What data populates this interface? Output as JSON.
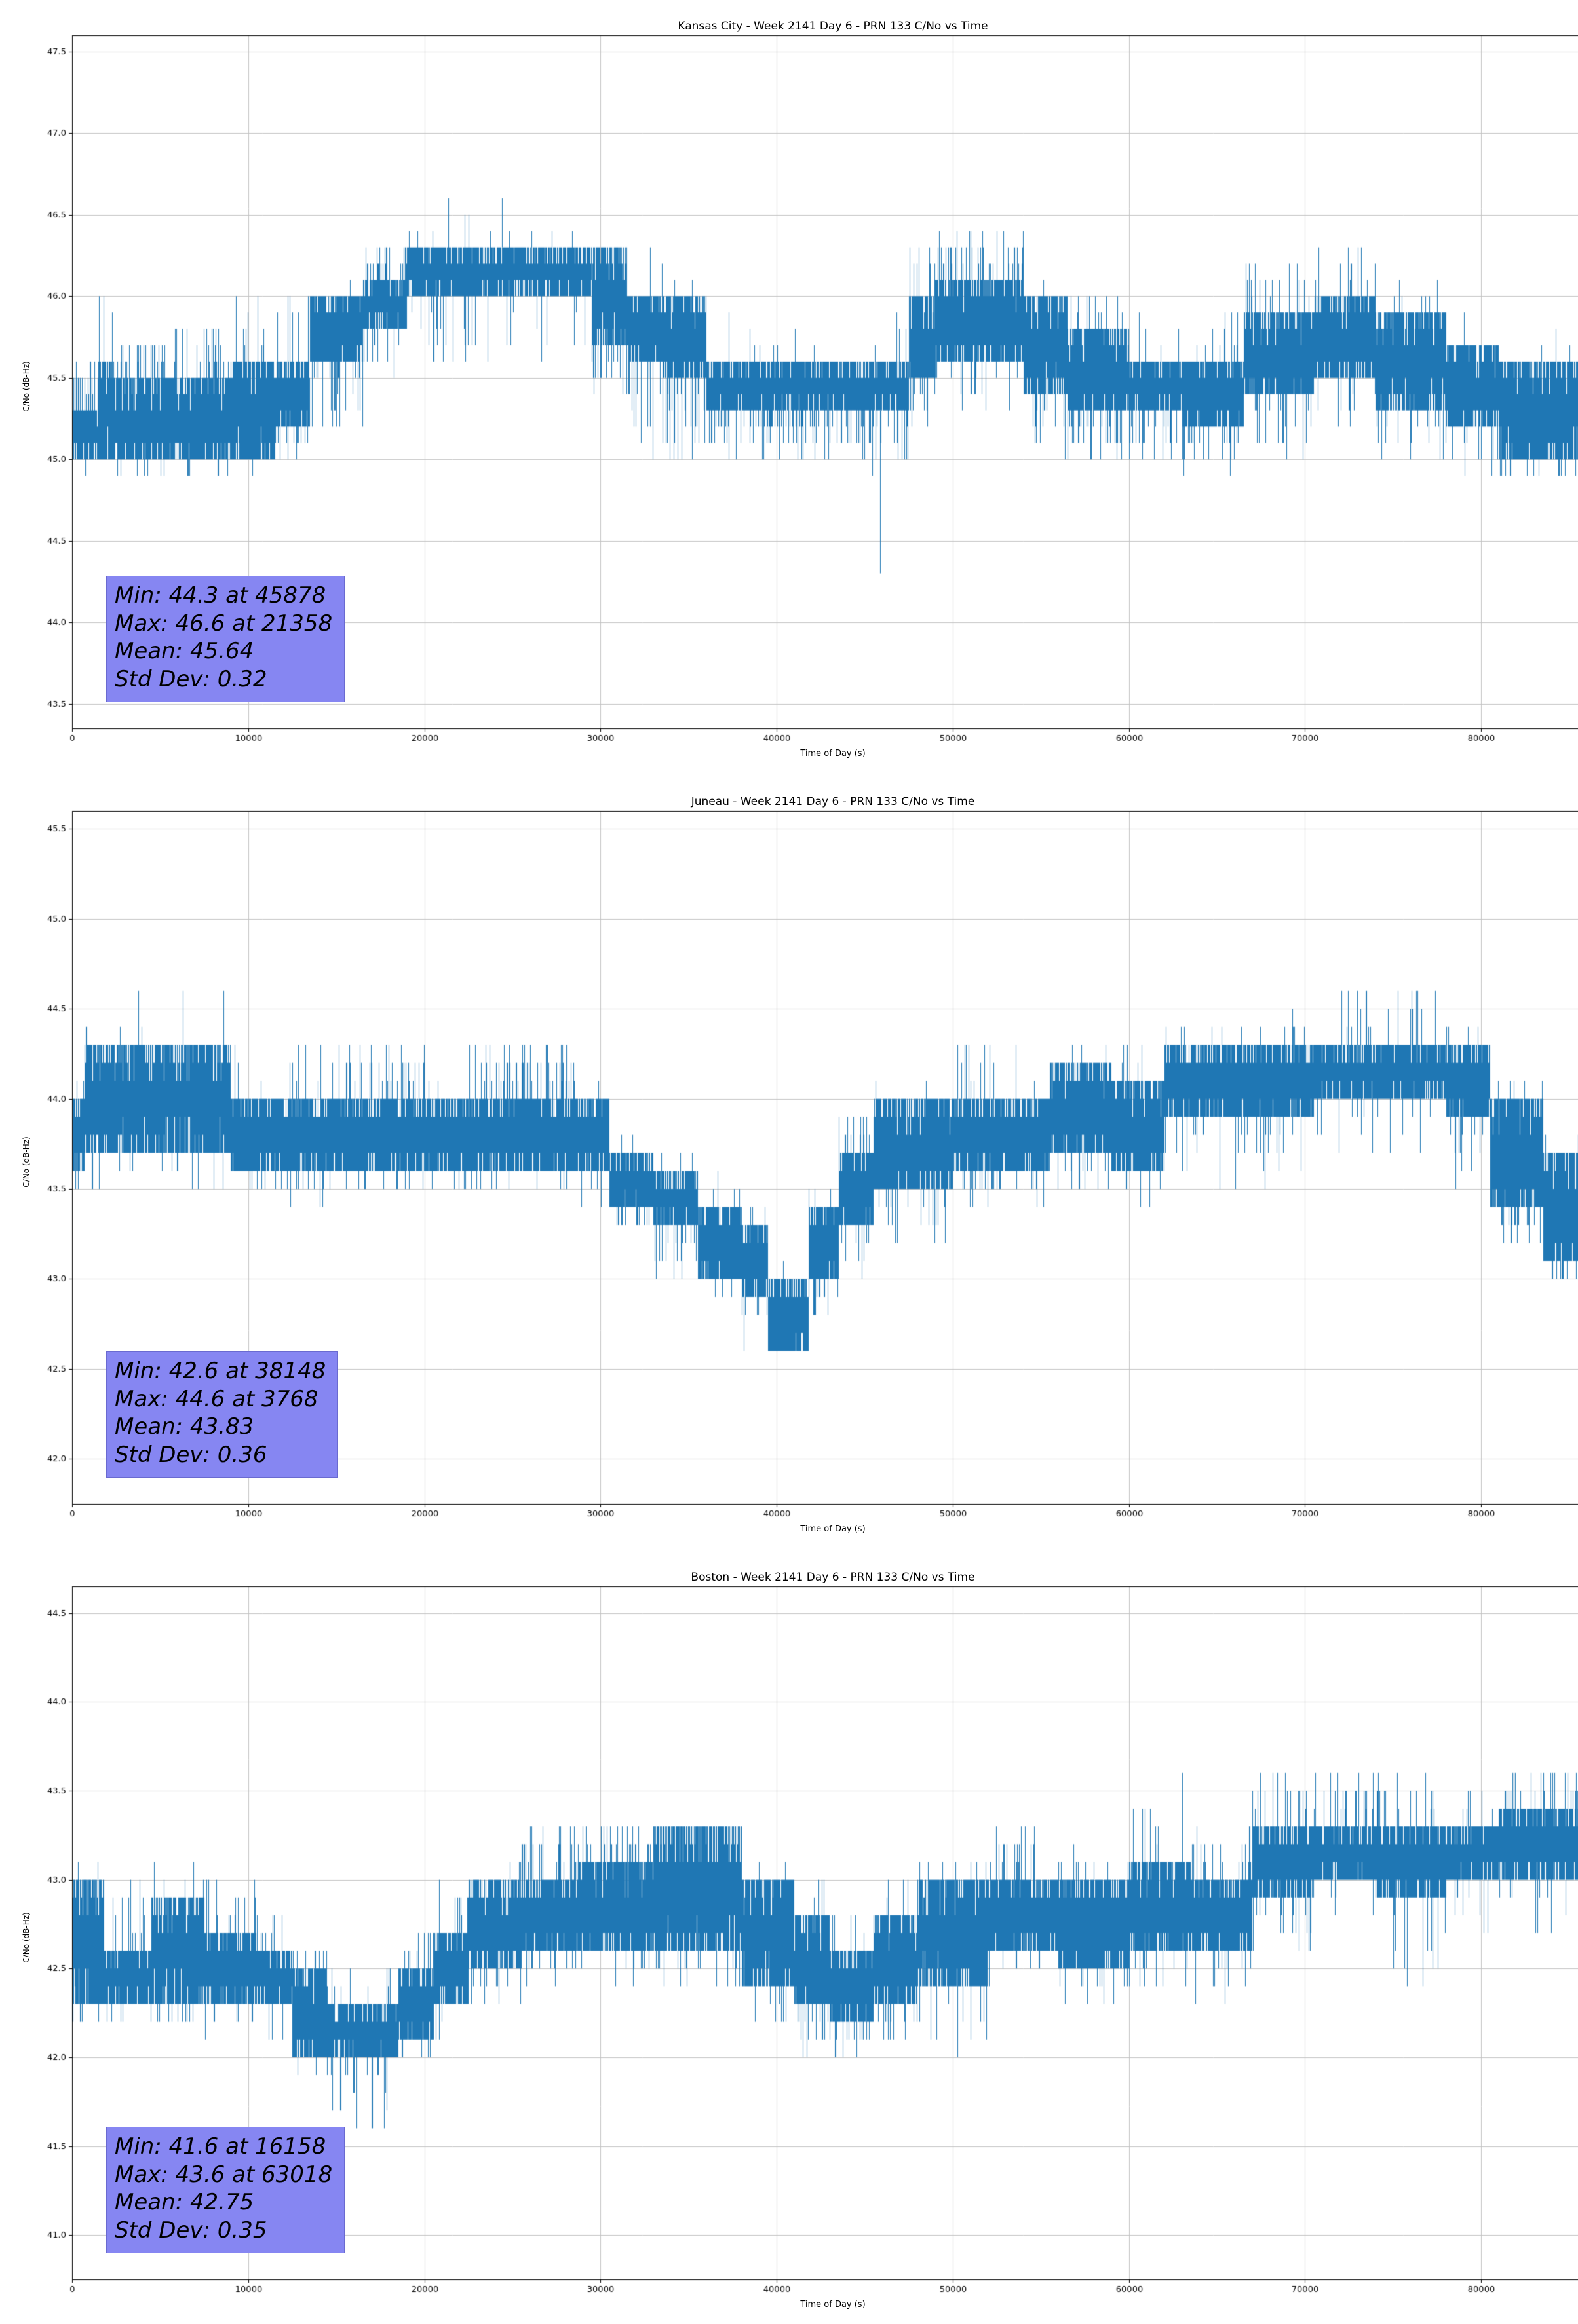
{
  "page": {
    "background": "#ffffff"
  },
  "chart_data": [
    {
      "type": "line",
      "station": "Kansas City",
      "title": "Kansas City - Week 2141 Day 6 - PRN 133 C/No vs Time",
      "xlabel": "Time of Day (s)",
      "ylabel": "C/No (dB-Hz)",
      "xlim": [
        0,
        86400
      ],
      "ylim": [
        43.35,
        47.6
      ],
      "xticks": [
        0,
        10000,
        20000,
        30000,
        40000,
        50000,
        60000,
        70000,
        80000
      ],
      "yticks": [
        43.5,
        44.0,
        44.5,
        45.0,
        45.5,
        46.0,
        46.5,
        47.0,
        47.5
      ],
      "grid": true,
      "grid_color": "#c3c3c3",
      "line_color": "#1f77b4",
      "annotation_bg": "#8686f2",
      "stats": {
        "min": 44.3,
        "min_time": 45878,
        "max": 46.6,
        "max_time": 21358,
        "mean": 45.64,
        "std_dev": 0.32
      },
      "stats_lines": [
        "Min: 44.3 at 45878",
        "Max: 46.6 at 21358",
        "Mean: 45.64",
        "Std Dev: 0.32"
      ],
      "seed": 1337,
      "segments": [
        [
          0,
          1500,
          45.0,
          45.3,
          44.9,
          45.6,
          0.1,
          0.5
        ],
        [
          1500,
          2300,
          45.0,
          45.6,
          44.9,
          46.0,
          0.05,
          0.08
        ],
        [
          2300,
          5500,
          45.0,
          45.5,
          44.9,
          45.7,
          0.1,
          0.2
        ],
        [
          5500,
          9000,
          45.0,
          45.5,
          44.9,
          45.8,
          0.08,
          0.15
        ],
        [
          9000,
          11500,
          45.0,
          45.6,
          44.9,
          46.0,
          0.05,
          0.12
        ],
        [
          11500,
          13500,
          45.2,
          45.6,
          45.0,
          46.0,
          0.15,
          0.1
        ],
        [
          13500,
          16500,
          45.6,
          46.0,
          45.2,
          46.1,
          0.25,
          0.05
        ],
        [
          16500,
          19000,
          45.8,
          46.1,
          45.5,
          46.3,
          0.2,
          0.3
        ],
        [
          19000,
          22500,
          46.0,
          46.3,
          45.6,
          46.5,
          0.1,
          0.05
        ],
        [
          22500,
          26000,
          46.0,
          46.3,
          45.6,
          46.6,
          0.07,
          0.03
        ],
        [
          26000,
          29500,
          46.0,
          46.3,
          45.6,
          46.4,
          0.12,
          0.04
        ],
        [
          29500,
          31500,
          45.7,
          46.3,
          45.3,
          46.3,
          0.3,
          0.02
        ],
        [
          31500,
          33500,
          45.6,
          46.0,
          45.0,
          46.3,
          0.2,
          0.05
        ],
        [
          33500,
          36000,
          45.5,
          46.0,
          45.0,
          46.1,
          0.25,
          0.05
        ],
        [
          36000,
          38500,
          45.3,
          45.6,
          45.0,
          46.0,
          0.3,
          0.05
        ],
        [
          38500,
          45000,
          45.3,
          45.6,
          45.0,
          45.8,
          0.4,
          0.04
        ],
        [
          45000,
          47500,
          45.3,
          45.6,
          44.9,
          45.9,
          0.3,
          0.06
        ],
        [
          47500,
          49000,
          45.5,
          46.0,
          45.2,
          46.3,
          0.2,
          0.2
        ],
        [
          49000,
          54000,
          45.6,
          46.1,
          45.3,
          46.4,
          0.15,
          0.25
        ],
        [
          54000,
          56500,
          45.4,
          46.0,
          45.0,
          46.1,
          0.2,
          0.05
        ],
        [
          56500,
          60000,
          45.3,
          45.8,
          45.0,
          46.0,
          0.2,
          0.1
        ],
        [
          60000,
          63000,
          45.3,
          45.6,
          45.0,
          46.0,
          0.3,
          0.06
        ],
        [
          63000,
          66500,
          45.2,
          45.6,
          44.9,
          45.9,
          0.3,
          0.1
        ],
        [
          66500,
          70500,
          45.4,
          45.9,
          45.0,
          46.2,
          0.15,
          0.15
        ],
        [
          70500,
          74000,
          45.5,
          46.0,
          45.2,
          46.3,
          0.12,
          0.1
        ],
        [
          74000,
          78000,
          45.3,
          45.9,
          45.0,
          46.1,
          0.15,
          0.1
        ],
        [
          78000,
          81000,
          45.2,
          45.7,
          44.9,
          46.0,
          0.2,
          0.06
        ],
        [
          81000,
          86400,
          45.0,
          45.6,
          44.9,
          45.8,
          0.2,
          0.05
        ]
      ],
      "spikes": [
        [
          1800,
          46.0
        ],
        [
          21358,
          46.6
        ],
        [
          24400,
          46.6
        ],
        [
          45878,
          44.3
        ]
      ]
    },
    {
      "type": "line",
      "station": "Juneau",
      "title": "Juneau - Week 2141 Day 6 - PRN 133 C/No vs Time",
      "xlabel": "Time of Day (s)",
      "ylabel": "C/No (dB-Hz)",
      "xlim": [
        0,
        86400
      ],
      "ylim": [
        41.75,
        45.6
      ],
      "xticks": [
        0,
        10000,
        20000,
        30000,
        40000,
        50000,
        60000,
        70000,
        80000
      ],
      "yticks": [
        42.0,
        42.5,
        43.0,
        43.5,
        44.0,
        44.5,
        45.0,
        45.5
      ],
      "grid": true,
      "grid_color": "#c3c3c3",
      "line_color": "#1f77b4",
      "annotation_bg": "#8686f2",
      "stats": {
        "min": 42.6,
        "min_time": 38148,
        "max": 44.6,
        "max_time": 3768,
        "mean": 43.83,
        "std_dev": 0.36
      },
      "stats_lines": [
        "Min: 42.6 at 38148",
        "Max: 44.6 at 3768",
        "Mean: 43.83",
        "Std Dev: 0.36"
      ],
      "seed": 4242,
      "segments": [
        [
          0,
          700,
          43.6,
          44.0,
          43.5,
          44.1,
          0.2,
          0.1
        ],
        [
          700,
          9000,
          43.7,
          44.3,
          43.5,
          44.4,
          0.15,
          0.03
        ],
        [
          9000,
          15500,
          43.6,
          44.0,
          43.4,
          44.3,
          0.15,
          0.06
        ],
        [
          15500,
          20000,
          43.6,
          44.0,
          43.5,
          44.3,
          0.1,
          0.25
        ],
        [
          20000,
          22500,
          43.6,
          44.0,
          43.5,
          44.1,
          0.15,
          0.05
        ],
        [
          22500,
          28500,
          43.6,
          44.0,
          43.5,
          44.3,
          0.1,
          0.25
        ],
        [
          28500,
          30500,
          43.6,
          44.0,
          43.4,
          44.1,
          0.15,
          0.05
        ],
        [
          30500,
          33000,
          43.4,
          43.7,
          43.3,
          43.8,
          0.3,
          0.1
        ],
        [
          33000,
          35500,
          43.3,
          43.6,
          43.0,
          43.7,
          0.25,
          0.1
        ],
        [
          35500,
          38000,
          43.0,
          43.4,
          42.9,
          43.6,
          0.2,
          0.1
        ],
        [
          38000,
          39500,
          42.9,
          43.3,
          42.6,
          43.4,
          0.25,
          0.05
        ],
        [
          39500,
          41800,
          42.6,
          43.0,
          42.6,
          43.1,
          0.3,
          0.05
        ],
        [
          41800,
          43500,
          43.0,
          43.4,
          42.8,
          43.5,
          0.2,
          0.1
        ],
        [
          43500,
          45500,
          43.3,
          43.7,
          43.0,
          43.9,
          0.2,
          0.15
        ],
        [
          45500,
          50000,
          43.5,
          44.0,
          43.2,
          44.1,
          0.2,
          0.05
        ],
        [
          50000,
          55500,
          43.6,
          44.0,
          43.4,
          44.3,
          0.15,
          0.1
        ],
        [
          55500,
          59000,
          43.7,
          44.2,
          43.5,
          44.3,
          0.12,
          0.05
        ],
        [
          59000,
          62000,
          43.6,
          44.1,
          43.4,
          44.3,
          0.15,
          0.1
        ],
        [
          62000,
          67000,
          43.9,
          44.3,
          43.5,
          44.4,
          0.15,
          0.03
        ],
        [
          67000,
          70500,
          43.9,
          44.3,
          43.5,
          44.5,
          0.12,
          0.06
        ],
        [
          70500,
          78000,
          44.0,
          44.3,
          43.7,
          44.6,
          0.1,
          0.08
        ],
        [
          78000,
          80500,
          43.9,
          44.3,
          43.5,
          44.4,
          0.15,
          0.05
        ],
        [
          80500,
          83500,
          43.4,
          44.0,
          43.2,
          44.1,
          0.25,
          0.05
        ],
        [
          83500,
          86400,
          43.1,
          43.7,
          43.0,
          43.8,
          0.3,
          0.05
        ]
      ],
      "spikes": [
        [
          3768,
          44.6
        ],
        [
          6300,
          44.6
        ],
        [
          8600,
          44.6
        ],
        [
          38148,
          42.6
        ]
      ]
    },
    {
      "type": "line",
      "station": "Boston",
      "title": "Boston - Week 2141 Day 6 - PRN 133 C/No vs Time",
      "xlabel": "Time of Day (s)",
      "ylabel": "C/No (dB-Hz)",
      "xlim": [
        0,
        86400
      ],
      "ylim": [
        40.75,
        44.65
      ],
      "xticks": [
        0,
        10000,
        20000,
        30000,
        40000,
        50000,
        60000,
        70000,
        80000
      ],
      "yticks": [
        41.0,
        41.5,
        42.0,
        42.5,
        43.0,
        43.5,
        44.0,
        44.5
      ],
      "grid": true,
      "grid_color": "#c3c3c3",
      "line_color": "#1f77b4",
      "annotation_bg": "#8686f2",
      "stats": {
        "min": 41.6,
        "min_time": 16158,
        "max": 43.6,
        "max_time": 63018,
        "mean": 42.75,
        "std_dev": 0.35
      },
      "stats_lines": [
        "Min: 41.6 at 16158",
        "Max: 43.6 at 63018",
        "Mean: 42.75",
        "Std Dev: 0.35"
      ],
      "seed": 9001,
      "segments": [
        [
          0,
          1800,
          42.3,
          43.0,
          42.2,
          43.1,
          0.15,
          0.05
        ],
        [
          1800,
          4500,
          42.3,
          42.6,
          42.2,
          43.0,
          0.15,
          0.2
        ],
        [
          4500,
          7500,
          42.3,
          42.9,
          42.2,
          43.1,
          0.15,
          0.08
        ],
        [
          7500,
          10500,
          42.3,
          42.7,
          42.1,
          43.0,
          0.15,
          0.12
        ],
        [
          10500,
          12500,
          42.3,
          42.6,
          42.0,
          42.8,
          0.15,
          0.1
        ],
        [
          12500,
          14500,
          42.0,
          42.5,
          41.9,
          42.6,
          0.2,
          0.1
        ],
        [
          14500,
          18500,
          42.0,
          42.3,
          41.6,
          42.5,
          0.15,
          0.1
        ],
        [
          18500,
          20500,
          42.1,
          42.5,
          42.0,
          42.7,
          0.2,
          0.15
        ],
        [
          20500,
          22500,
          42.3,
          42.7,
          42.1,
          43.0,
          0.15,
          0.15
        ],
        [
          22500,
          25500,
          42.5,
          43.0,
          42.3,
          43.1,
          0.15,
          0.05
        ],
        [
          25500,
          28500,
          42.6,
          43.0,
          42.4,
          43.3,
          0.1,
          0.2
        ],
        [
          28500,
          33000,
          42.6,
          43.1,
          42.4,
          43.3,
          0.1,
          0.25
        ],
        [
          33000,
          38000,
          42.6,
          43.3,
          42.4,
          43.3,
          0.12,
          0.02
        ],
        [
          38000,
          41000,
          42.4,
          43.0,
          42.2,
          43.1,
          0.2,
          0.05
        ],
        [
          41000,
          43000,
          42.3,
          42.8,
          42.0,
          43.0,
          0.2,
          0.08
        ],
        [
          43000,
          45500,
          42.2,
          42.6,
          42.0,
          42.8,
          0.3,
          0.08
        ],
        [
          45500,
          48000,
          42.3,
          42.8,
          42.1,
          43.0,
          0.2,
          0.1
        ],
        [
          48000,
          52000,
          42.4,
          43.0,
          42.0,
          43.1,
          0.15,
          0.05
        ],
        [
          52000,
          56000,
          42.6,
          43.0,
          42.4,
          43.3,
          0.12,
          0.15
        ],
        [
          56000,
          60000,
          42.5,
          43.0,
          42.3,
          43.2,
          0.15,
          0.1
        ],
        [
          60000,
          63500,
          42.6,
          43.1,
          42.4,
          43.4,
          0.12,
          0.1
        ],
        [
          63500,
          67000,
          42.6,
          43.0,
          42.3,
          43.3,
          0.1,
          0.2
        ],
        [
          67000,
          70500,
          42.9,
          43.3,
          42.5,
          43.6,
          0.12,
          0.12
        ],
        [
          70500,
          74000,
          43.0,
          43.3,
          42.6,
          43.6,
          0.08,
          0.2
        ],
        [
          74000,
          78000,
          42.9,
          43.3,
          42.4,
          43.6,
          0.1,
          0.15
        ],
        [
          78000,
          81000,
          43.0,
          43.3,
          42.7,
          43.5,
          0.1,
          0.1
        ],
        [
          81000,
          86400,
          43.0,
          43.4,
          42.7,
          43.6,
          0.08,
          0.15
        ]
      ],
      "spikes": [
        [
          16158,
          41.6
        ],
        [
          17000,
          41.6
        ],
        [
          63018,
          43.6
        ]
      ]
    }
  ]
}
